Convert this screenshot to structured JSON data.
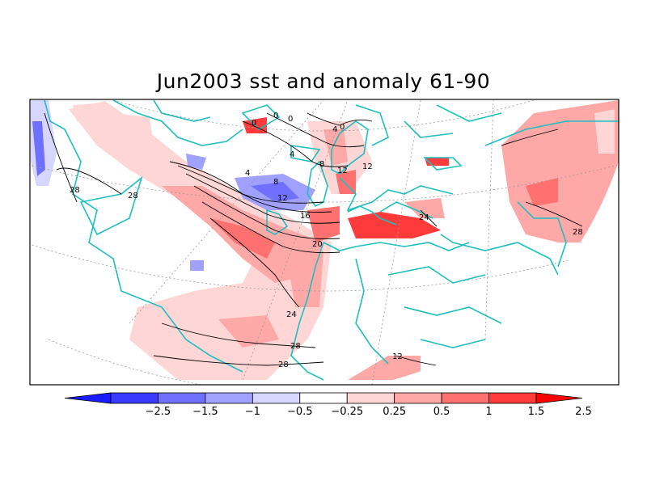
{
  "title": "Jun2003 sst and anomaly 61-90",
  "colorbar": {
    "ticks": [
      "−2.5",
      "−1.5",
      "−1",
      "−0.5",
      "−0.25",
      "0.25",
      "0.5",
      "1",
      "1.5",
      "2.5"
    ],
    "colors": [
      "#1a1aff",
      "#3a3aff",
      "#7070ff",
      "#a0a0ff",
      "#d6d6ff",
      "#ffffff",
      "#ffd6d6",
      "#ffa8a8",
      "#ff7070",
      "#ff3a3a",
      "#ff0000"
    ]
  },
  "colors": {
    "coastline": "#1fbfbf",
    "contour": "#000000",
    "grid": "#999999"
  },
  "contour_labels": [
    {
      "text": "0"
    },
    {
      "text": "0"
    },
    {
      "text": "0"
    },
    {
      "text": "4"
    },
    {
      "text": "0"
    },
    {
      "text": "4"
    },
    {
      "text": "8"
    },
    {
      "text": "4"
    },
    {
      "text": "8"
    },
    {
      "text": "12"
    },
    {
      "text": "12"
    },
    {
      "text": "16"
    },
    {
      "text": "20"
    },
    {
      "text": "24"
    },
    {
      "text": "24"
    },
    {
      "text": "28"
    },
    {
      "text": "28"
    },
    {
      "text": "28"
    },
    {
      "text": "28"
    },
    {
      "text": "28"
    },
    {
      "text": "12"
    },
    {
      "text": "12"
    }
  ]
}
